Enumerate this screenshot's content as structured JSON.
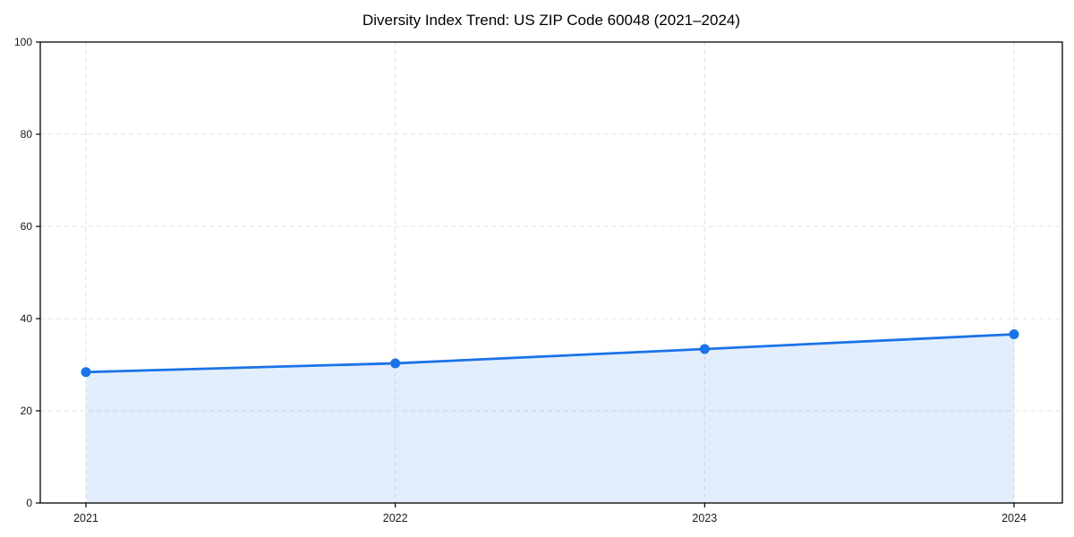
{
  "chart_data": {
    "type": "area",
    "title": "Diversity Index Trend: US ZIP Code 60048 (2021–2024)",
    "categories": [
      "2021",
      "2022",
      "2023",
      "2024"
    ],
    "values": [
      28.4,
      30.3,
      33.4,
      36.6
    ],
    "xlabel": "",
    "ylabel": "",
    "ylim": [
      0,
      100
    ],
    "yticks": [
      0,
      20,
      40,
      60,
      80,
      100
    ],
    "grid": true,
    "legend": "none",
    "colors": {
      "line": "#1a73e8",
      "marker": "#1a73e8",
      "area_fill": "rgba(26,115,232,0.12)",
      "gridline": "#e2e2e2",
      "axis": "#000000",
      "tick_label": "#1a1a1a",
      "background": "#ffffff"
    }
  }
}
